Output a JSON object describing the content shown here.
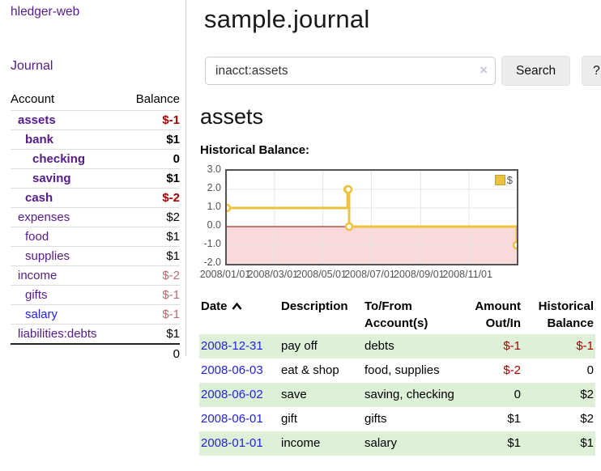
{
  "colors": {
    "link_purple": "#551a8b",
    "link_blue": "#2222dd",
    "negative_strong": "#a40000",
    "negative_soft": "#b96a6a",
    "row_green": "#dff0d8",
    "line_gold": "#edc240",
    "negative_band_pink": "#f9d9d9",
    "zero_line_maroon": "#8b0000"
  },
  "app": {
    "title": "hledger-web"
  },
  "sidebar": {
    "journal_link": "Journal",
    "headers": [
      "Account",
      "Balance"
    ],
    "accounts": [
      {
        "name": "assets",
        "depth": 1,
        "bold": true,
        "balance": "$-1",
        "neg": "strong"
      },
      {
        "name": "bank",
        "depth": 2,
        "bold": true,
        "balance": "$1",
        "neg": null
      },
      {
        "name": "checking",
        "depth": 3,
        "bold": true,
        "balance": "0",
        "neg": null
      },
      {
        "name": "saving",
        "depth": 3,
        "bold": true,
        "balance": "$1",
        "neg": null
      },
      {
        "name": "cash",
        "depth": 2,
        "bold": true,
        "balance": "$-2",
        "neg": "strong"
      },
      {
        "name": "expenses",
        "depth": 1,
        "bold": false,
        "balance": "$2",
        "neg": null
      },
      {
        "name": "food",
        "depth": 2,
        "bold": false,
        "balance": "$1",
        "neg": null
      },
      {
        "name": "supplies",
        "depth": 2,
        "bold": false,
        "balance": "$1",
        "neg": null
      },
      {
        "name": "income",
        "depth": 1,
        "bold": false,
        "balance": "$-2",
        "neg": "soft"
      },
      {
        "name": "gifts",
        "depth": 2,
        "bold": false,
        "balance": "$-1",
        "neg": "soft"
      },
      {
        "name": "salary",
        "depth": 2,
        "bold": false,
        "balance": "$-1",
        "neg": "soft",
        "unvisited": true
      },
      {
        "name": "liabilities:debts",
        "depth": 1,
        "bold": false,
        "balance": "$1",
        "neg": null
      }
    ],
    "total": "0"
  },
  "main": {
    "page_title": "sample.journal",
    "account_heading": "assets"
  },
  "search": {
    "value": "inacct:assets",
    "clear_icon": "×",
    "button_label": "Search",
    "help_label": "?"
  },
  "chart_data": {
    "type": "line",
    "step": true,
    "title": "Historical Balance:",
    "series": [
      {
        "name": "$",
        "color": "#edc240",
        "points": [
          [
            "2008-01-01",
            1
          ],
          [
            "2008-06-01",
            2
          ],
          [
            "2008-06-02",
            2
          ],
          [
            "2008-06-03",
            0
          ],
          [
            "2008-12-31",
            -1
          ]
        ]
      }
    ],
    "x_ticks": [
      "2008/01/01",
      "2008/03/01",
      "2008/05/01",
      "2008/07/01",
      "2008/09/01",
      "2008/11/01"
    ],
    "y_ticks": [
      3.0,
      2.0,
      1.0,
      0.0,
      -1.0,
      -2.0
    ],
    "xlim": [
      "2008-01-01",
      "2008-12-31"
    ],
    "ylim": [
      -2,
      3
    ],
    "grid": true,
    "legend_position": "top-right",
    "negative_region_color": "#f9d9d9",
    "zero_line_color": "#8b0000"
  },
  "register": {
    "headers": [
      "Date",
      "Description",
      "To/From Account(s)",
      "Amount Out/In",
      "Historical Balance"
    ],
    "sort": {
      "column": "Date",
      "icon": "chevron-up"
    },
    "rows": [
      {
        "date": "2008-12-31",
        "description": "pay off",
        "accounts": "debts",
        "amount": "$-1",
        "amount_negative": true,
        "balance": "$-1",
        "balance_negative": true
      },
      {
        "date": "2008-06-03",
        "description": "eat & shop",
        "accounts": "food, supplies",
        "amount": "$-2",
        "amount_negative": true,
        "balance": "0",
        "balance_negative": false
      },
      {
        "date": "2008-06-02",
        "description": "save",
        "accounts": "saving, checking",
        "amount": "0",
        "amount_negative": false,
        "balance": "$2",
        "balance_negative": false
      },
      {
        "date": "2008-06-01",
        "description": "gift",
        "accounts": "gifts",
        "amount": "$1",
        "amount_negative": false,
        "balance": "$2",
        "balance_negative": false
      },
      {
        "date": "2008-01-01",
        "description": "income",
        "accounts": "salary",
        "amount": "$1",
        "amount_negative": false,
        "balance": "$1",
        "balance_negative": false
      }
    ]
  }
}
